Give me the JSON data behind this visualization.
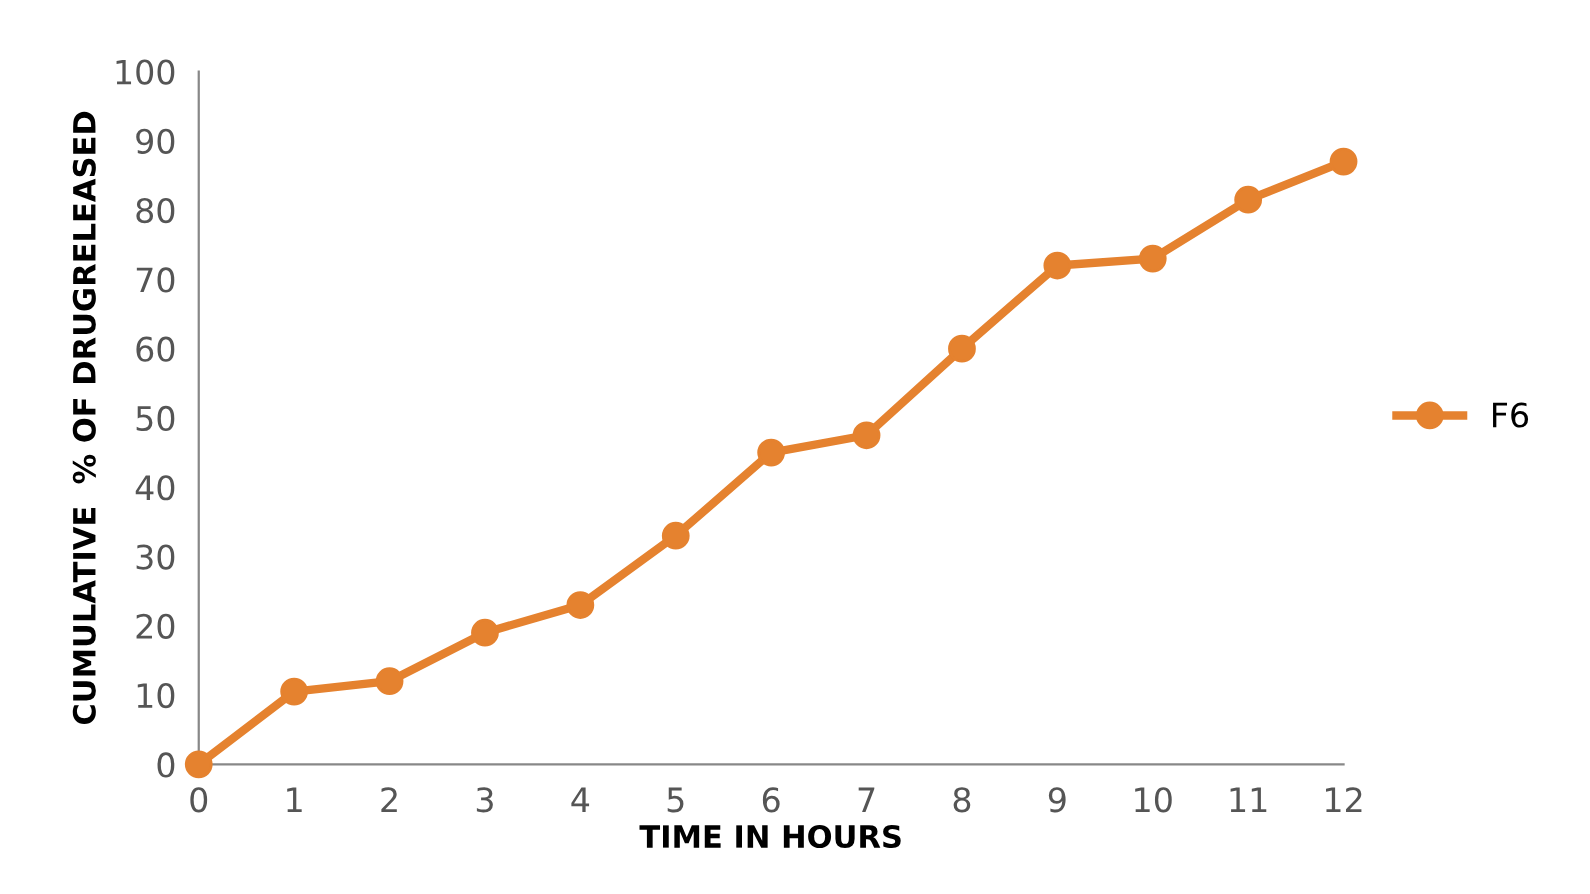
{
  "chart_data": {
    "type": "line",
    "xlabel": "TIME IN HOURS",
    "ylabel": "CUMULATIVE  % OF DRUGRELEASED",
    "categories": [
      "0",
      "1",
      "2",
      "3",
      "4",
      "5",
      "6",
      "7",
      "8",
      "9",
      "10",
      "11",
      "12"
    ],
    "series": [
      {
        "name": "F6",
        "color": "#e5822f",
        "values": [
          0,
          10.5,
          12,
          19,
          23,
          33,
          45,
          47.5,
          60,
          72,
          73,
          81.5,
          87
        ]
      }
    ],
    "ylim": [
      0,
      100
    ],
    "yticks": [
      0,
      10,
      20,
      30,
      40,
      50,
      60,
      70,
      80,
      90,
      100
    ],
    "grid": false,
    "legend": "right",
    "marker": "circle",
    "line_style": "solid"
  }
}
